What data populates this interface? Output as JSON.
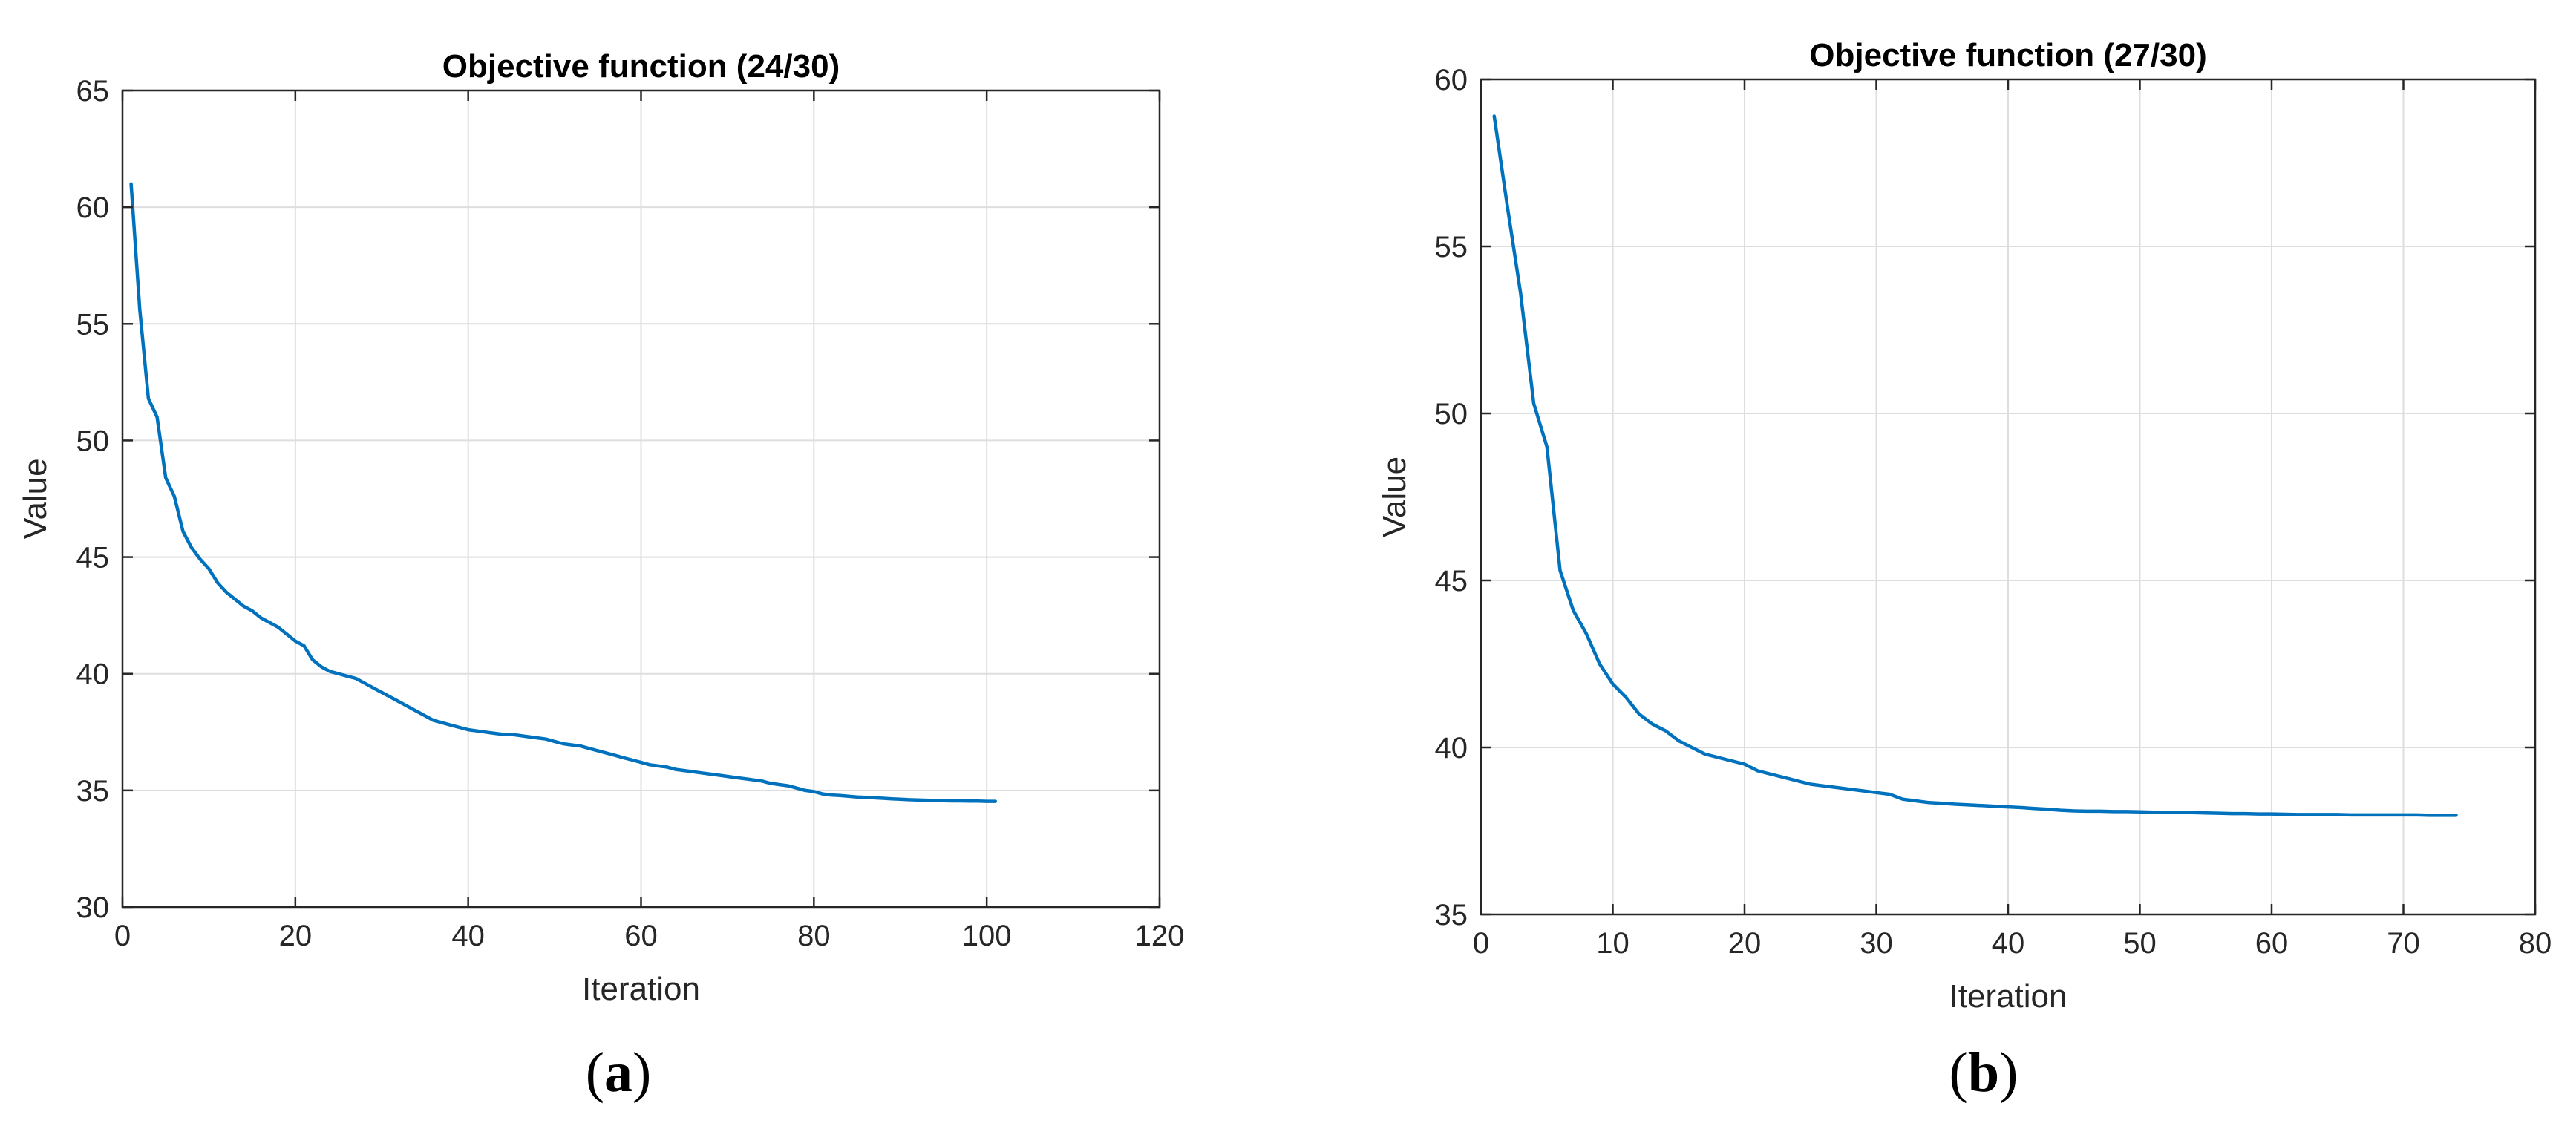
{
  "chart_data": [
    {
      "type": "line",
      "title": "Objective function (24/30)",
      "xlabel": "Iteration",
      "ylabel": "Value",
      "xlim": [
        0,
        120
      ],
      "ylim": [
        30,
        65
      ],
      "xticks": [
        0,
        20,
        40,
        60,
        80,
        100,
        120
      ],
      "yticks": [
        30,
        35,
        40,
        45,
        50,
        55,
        60,
        65
      ],
      "grid": true,
      "caption": "a",
      "line_color": "#0072BD",
      "series": [
        {
          "x": [
            1,
            2,
            3,
            4,
            5,
            6,
            7,
            8,
            9,
            10,
            11,
            12,
            13,
            14,
            15,
            16,
            17,
            18,
            19,
            20,
            21,
            22,
            23,
            24,
            25,
            26,
            27,
            28,
            29,
            30,
            31,
            32,
            33,
            34,
            35,
            36,
            37,
            38,
            39,
            40,
            41,
            42,
            43,
            44,
            45,
            46,
            47,
            48,
            49,
            50,
            51,
            52,
            53,
            54,
            55,
            56,
            57,
            58,
            59,
            60,
            61,
            62,
            63,
            64,
            65,
            66,
            67,
            68,
            69,
            70,
            71,
            72,
            73,
            74,
            75,
            76,
            77,
            78,
            79,
            80,
            81,
            82,
            83,
            84,
            85,
            86,
            87,
            88,
            89,
            90,
            91,
            92,
            93,
            94,
            95,
            96,
            97,
            98,
            99,
            100,
            101
          ],
          "values": [
            61.0,
            55.6,
            51.8,
            51.0,
            48.4,
            47.6,
            46.1,
            45.4,
            44.9,
            44.5,
            43.9,
            43.5,
            43.2,
            42.9,
            42.7,
            42.4,
            42.2,
            42.0,
            41.7,
            41.4,
            41.2,
            40.6,
            40.3,
            40.1,
            40.0,
            39.9,
            39.8,
            39.6,
            39.4,
            39.2,
            39.0,
            38.8,
            38.6,
            38.4,
            38.2,
            38.0,
            37.9,
            37.8,
            37.7,
            37.6,
            37.55,
            37.5,
            37.45,
            37.4,
            37.4,
            37.35,
            37.3,
            37.25,
            37.2,
            37.1,
            37.0,
            36.95,
            36.9,
            36.8,
            36.7,
            36.6,
            36.5,
            36.4,
            36.3,
            36.2,
            36.1,
            36.05,
            36.0,
            35.9,
            35.85,
            35.8,
            35.75,
            35.7,
            35.65,
            35.6,
            35.55,
            35.5,
            35.45,
            35.4,
            35.3,
            35.25,
            35.2,
            35.1,
            35.0,
            34.95,
            34.85,
            34.8,
            34.78,
            34.75,
            34.72,
            34.7,
            34.68,
            34.66,
            34.64,
            34.62,
            34.6,
            34.59,
            34.58,
            34.57,
            34.56,
            34.55,
            34.55,
            34.54,
            34.54,
            34.53,
            34.53
          ]
        }
      ]
    },
    {
      "type": "line",
      "title": "Objective function (27/30)",
      "xlabel": "Iteration",
      "ylabel": "Value",
      "xlim": [
        0,
        80
      ],
      "ylim": [
        35,
        60
      ],
      "xticks": [
        0,
        10,
        20,
        30,
        40,
        50,
        60,
        70,
        80
      ],
      "yticks": [
        35,
        40,
        45,
        50,
        55,
        60
      ],
      "grid": true,
      "caption": "b",
      "line_color": "#0072BD",
      "series": [
        {
          "x": [
            1,
            2,
            3,
            4,
            5,
            6,
            7,
            8,
            9,
            10,
            11,
            12,
            13,
            14,
            15,
            16,
            17,
            18,
            19,
            20,
            21,
            22,
            23,
            24,
            25,
            26,
            27,
            28,
            29,
            30,
            31,
            32,
            33,
            34,
            35,
            36,
            37,
            38,
            39,
            40,
            41,
            42,
            43,
            44,
            45,
            46,
            47,
            48,
            49,
            50,
            51,
            52,
            53,
            54,
            55,
            56,
            57,
            58,
            59,
            60,
            61,
            62,
            63,
            64,
            65,
            66,
            67,
            68,
            69,
            70,
            71,
            72,
            73,
            74
          ],
          "values": [
            58.9,
            56.2,
            53.6,
            50.3,
            49.0,
            45.3,
            44.1,
            43.4,
            42.5,
            41.9,
            41.5,
            41.0,
            40.7,
            40.5,
            40.2,
            40.0,
            39.8,
            39.7,
            39.6,
            39.5,
            39.3,
            39.2,
            39.1,
            39.0,
            38.9,
            38.85,
            38.8,
            38.75,
            38.7,
            38.65,
            38.6,
            38.45,
            38.4,
            38.35,
            38.33,
            38.3,
            38.28,
            38.26,
            38.24,
            38.22,
            38.2,
            38.17,
            38.15,
            38.12,
            38.1,
            38.09,
            38.09,
            38.08,
            38.08,
            38.07,
            38.06,
            38.05,
            38.05,
            38.05,
            38.04,
            38.03,
            38.02,
            38.02,
            38.01,
            38.01,
            38.0,
            37.99,
            37.99,
            37.99,
            37.99,
            37.98,
            37.98,
            37.98,
            37.98,
            37.98,
            37.98,
            37.97,
            37.97,
            37.97
          ]
        }
      ]
    }
  ]
}
